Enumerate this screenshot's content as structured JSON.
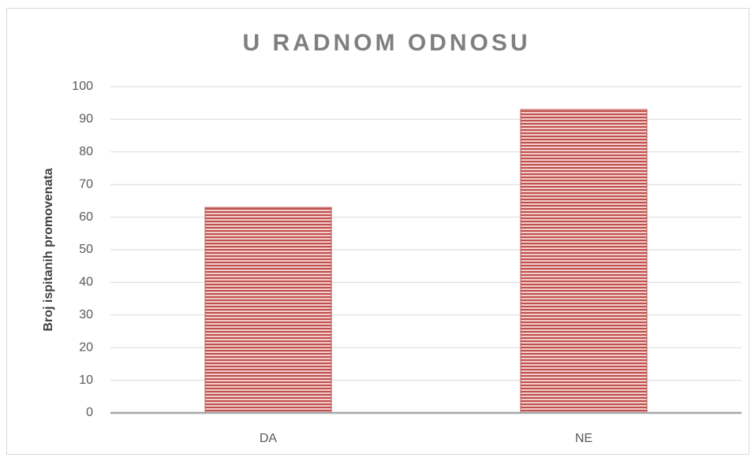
{
  "chart_data": {
    "type": "bar",
    "title": "U RADNOM ODNOSU",
    "y_label": "Broj ispitanih promovenata",
    "categories": [
      "DA",
      "NE"
    ],
    "values": [
      63,
      93
    ],
    "color": "#c0504d",
    "ylim": [
      0,
      100
    ],
    "yticks": [
      0,
      10,
      20,
      30,
      40,
      50,
      60,
      70,
      80,
      90,
      100
    ],
    "grid": true
  }
}
